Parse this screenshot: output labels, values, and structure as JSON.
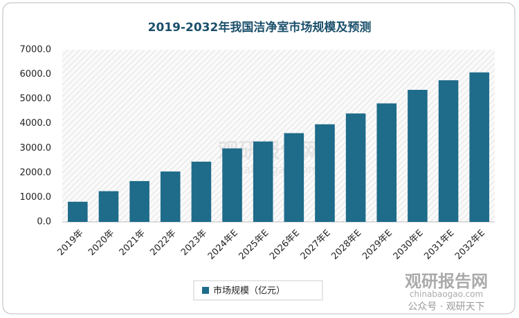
{
  "chart_data": {
    "type": "bar",
    "title": "2019-2032年我国洁净室市场规模及预测",
    "categories": [
      "2019年",
      "2020年",
      "2021年",
      "2022年",
      "2023年",
      "2024年E",
      "2025年E",
      "2026年E",
      "2027年E",
      "2028年E",
      "2029年E",
      "2030年E",
      "2031年E",
      "2032年E"
    ],
    "series": [
      {
        "name": "市场规模（亿元）",
        "color": "#1e6b8a",
        "values": [
          820,
          1250,
          1660,
          2050,
          2450,
          2990,
          3270,
          3610,
          3970,
          4410,
          4820,
          5370,
          5760,
          6080
        ]
      }
    ],
    "ylim": [
      0,
      7000
    ],
    "yticks": [
      {
        "value": 0,
        "label": "0.0"
      },
      {
        "value": 1000,
        "label": "1000.0"
      },
      {
        "value": 2000,
        "label": "2000.0"
      },
      {
        "value": 3000,
        "label": "3000.0"
      },
      {
        "value": 4000,
        "label": "4000.0"
      },
      {
        "value": 5000,
        "label": "5000.0"
      },
      {
        "value": 6000,
        "label": "6000.0"
      },
      {
        "value": 7000,
        "label": "7000.0"
      }
    ],
    "grid": false,
    "legend": "bottom",
    "watermarks": [
      "观研报告网",
      "chinabaogao.com",
      "公众号 · 观研天下"
    ]
  }
}
